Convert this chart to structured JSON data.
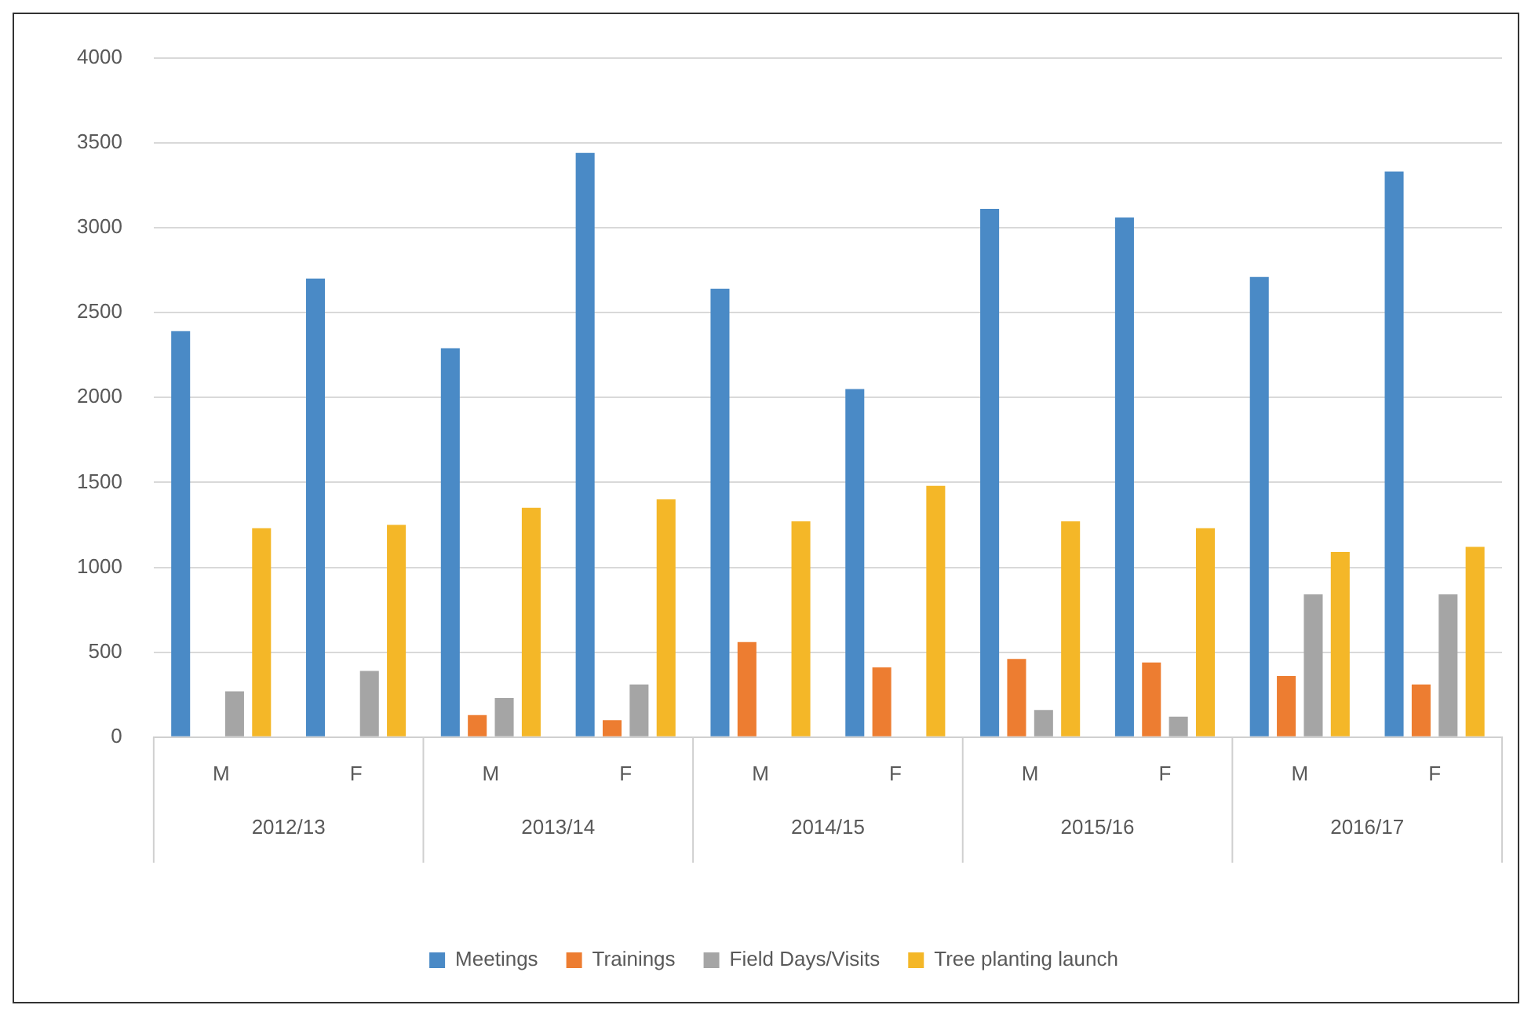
{
  "chart_data": {
    "type": "bar",
    "categories": [
      "M",
      "F",
      "M",
      "F",
      "M",
      "F",
      "M",
      "F",
      "M",
      "F"
    ],
    "annotations": [
      "2012/13",
      "2013/14",
      "2014/15",
      "2015/16",
      "2016/17"
    ],
    "series": [
      {
        "name": "Meetings",
        "color": "#4a8ac6",
        "values": [
          2390,
          2700,
          2290,
          3440,
          2640,
          2050,
          3110,
          3060,
          2710,
          3330
        ]
      },
      {
        "name": "Trainings",
        "color": "#ed7d31",
        "values": [
          0,
          0,
          130,
          100,
          560,
          410,
          460,
          440,
          360,
          310
        ]
      },
      {
        "name": "Field Days/Visits",
        "color": "#a5a5a5",
        "values": [
          270,
          390,
          230,
          310,
          0,
          0,
          160,
          120,
          840,
          840
        ]
      },
      {
        "name": "Tree planting launch",
        "color": "#f4b728",
        "values": [
          1230,
          1250,
          1350,
          1400,
          1270,
          1480,
          1270,
          1230,
          1090,
          1120
        ]
      }
    ],
    "ylim": [
      0,
      4000
    ],
    "yticks": [
      0,
      500,
      1000,
      1500,
      2000,
      2500,
      3000,
      3500,
      4000
    ],
    "grid": "y",
    "legend": "bottom"
  }
}
